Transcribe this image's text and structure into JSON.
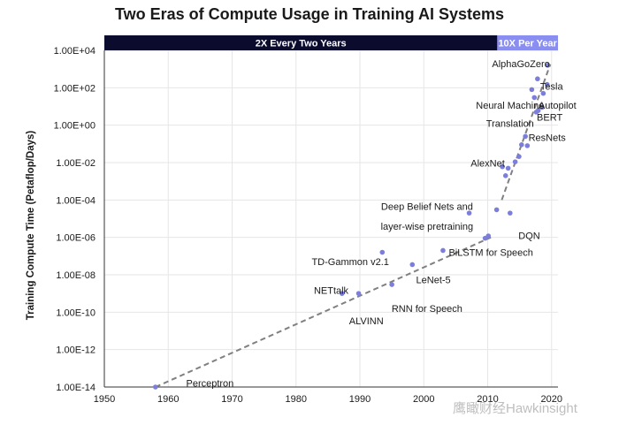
{
  "chart_data": {
    "type": "scatter",
    "title": "Two Eras of Compute Usage in Training AI Systems",
    "ylabel": "Training Compute Time (Petaflop/Days)",
    "xlabel": "",
    "y_scale": "log",
    "xlim": [
      1950,
      2021
    ],
    "ylim_exponent": [
      -14,
      4
    ],
    "x_ticks": [
      1950,
      1960,
      1970,
      1980,
      1990,
      2000,
      2010,
      2020
    ],
    "y_ticks": [
      "1.00E-14",
      "1.00E-12",
      "1.00E-10",
      "1.00E-08",
      "1.00E-06",
      "1.00E-04",
      "1.00E-02",
      "1.00E+00",
      "1.00E+02",
      "1.00E+04"
    ],
    "y_tick_exponents": [
      -14,
      -12,
      -10,
      -8,
      -6,
      -4,
      -2,
      0,
      2,
      4
    ],
    "grid": true,
    "eras": [
      {
        "label": "2X Every Two Years",
        "x_start": 1950,
        "x_end": 2011.5,
        "color": "#0b0b2e"
      },
      {
        "label": "10X Per Year",
        "x_start": 2011.5,
        "x_end": 2021,
        "color": "#8a8ef0"
      }
    ],
    "points": [
      {
        "x": 1958,
        "y": 1e-14
      },
      {
        "x": 1987.2,
        "y": 1e-09
      },
      {
        "x": 1989.8,
        "y": 1e-09
      },
      {
        "x": 1993.5,
        "y": 1.6e-07
      },
      {
        "x": 1995,
        "y": 3e-09
      },
      {
        "x": 1998.2,
        "y": 3.5e-08
      },
      {
        "x": 2003,
        "y": 2e-07
      },
      {
        "x": 2007.1,
        "y": 2e-05
      },
      {
        "x": 2009.6,
        "y": 9e-07
      },
      {
        "x": 2010.1,
        "y": 1.2e-06
      },
      {
        "x": 2011.4,
        "y": 3e-05
      },
      {
        "x": 2012.3,
        "y": 0.006
      },
      {
        "x": 2012.8,
        "y": 0.002
      },
      {
        "x": 2013.2,
        "y": 0.005
      },
      {
        "x": 2013.5,
        "y": 2e-05
      },
      {
        "x": 2014.3,
        "y": 0.011
      },
      {
        "x": 2014.9,
        "y": 0.021
      },
      {
        "x": 2015.3,
        "y": 0.09
      },
      {
        "x": 2015.9,
        "y": 0.25
      },
      {
        "x": 2016.2,
        "y": 0.08
      },
      {
        "x": 2016.9,
        "y": 80
      },
      {
        "x": 2017.3,
        "y": 30
      },
      {
        "x": 2017.6,
        "y": 5
      },
      {
        "x": 2017.8,
        "y": 300
      },
      {
        "x": 2017.9,
        "y": 6
      },
      {
        "x": 2018.5,
        "y": 9
      },
      {
        "x": 2018.7,
        "y": 50
      },
      {
        "x": 2019.3,
        "y": 150
      },
      {
        "x": 2019.4,
        "y": 1600
      }
    ],
    "trend_lines": [
      {
        "from": [
          1958,
          1e-14
        ],
        "to": [
          2010.5,
          1e-06
        ]
      },
      {
        "from": [
          2012.2,
          0.0001
        ],
        "to": [
          2019.8,
          1800
        ]
      }
    ],
    "annotations": [
      {
        "text": "Perceptron",
        "x": 1962.8,
        "y": 1.6e-14,
        "anchor": "start"
      },
      {
        "text": "NETtalk",
        "x": 1985.5,
        "y": 1.5e-09,
        "anchor": "middle"
      },
      {
        "text": "ALVINN",
        "x": 1991,
        "y": 3.5e-11,
        "anchor": "middle"
      },
      {
        "text": "TD-Gammon v2.1",
        "x": 1988.5,
        "y": 5e-08,
        "anchor": "middle"
      },
      {
        "text": "RNN for Speech",
        "x": 2000.5,
        "y": 1.6e-10,
        "anchor": "middle"
      },
      {
        "text": "LeNet-5",
        "x": 2001.5,
        "y": 5.5e-09,
        "anchor": "middle"
      },
      {
        "text": "BiLSTM for Speech",
        "x": 2010.5,
        "y": 1.6e-07,
        "anchor": "middle"
      },
      {
        "text": "Deep Belief Nets and",
        "x": 2000.5,
        "y": 4.5e-05,
        "anchor": "middle"
      },
      {
        "text": "layer-wise pretraining",
        "x": 2000.5,
        "y": 4e-06,
        "anchor": "middle"
      },
      {
        "text": "DQN",
        "x": 2016.5,
        "y": 1.3e-06,
        "anchor": "middle"
      },
      {
        "text": "AlexNet",
        "x": 2010,
        "y": 0.0095,
        "anchor": "middle"
      },
      {
        "text": "ResNets",
        "x": 2019.3,
        "y": 0.22,
        "anchor": "middle"
      },
      {
        "text": "Neural Machine",
        "x": 2013.5,
        "y": 12,
        "anchor": "middle"
      },
      {
        "text": "Translation",
        "x": 2013.5,
        "y": 1.3,
        "anchor": "middle"
      },
      {
        "text": "BERT",
        "x": 2019.7,
        "y": 2.7,
        "anchor": "middle"
      },
      {
        "text": "Tesla",
        "x": 2020,
        "y": 120,
        "anchor": "middle"
      },
      {
        "text": "Autopilot",
        "x": 2020.9,
        "y": 12,
        "anchor": "middle"
      },
      {
        "text": "AlphaGoZero",
        "x": 2015.2,
        "y": 2000,
        "anchor": "middle"
      }
    ],
    "colors": {
      "point": "#7b7fdb",
      "trend": "#808080",
      "grid": "#e6e6e6",
      "axis": "#333333"
    }
  },
  "watermark": "鹰瞰财经Hawkinsight"
}
